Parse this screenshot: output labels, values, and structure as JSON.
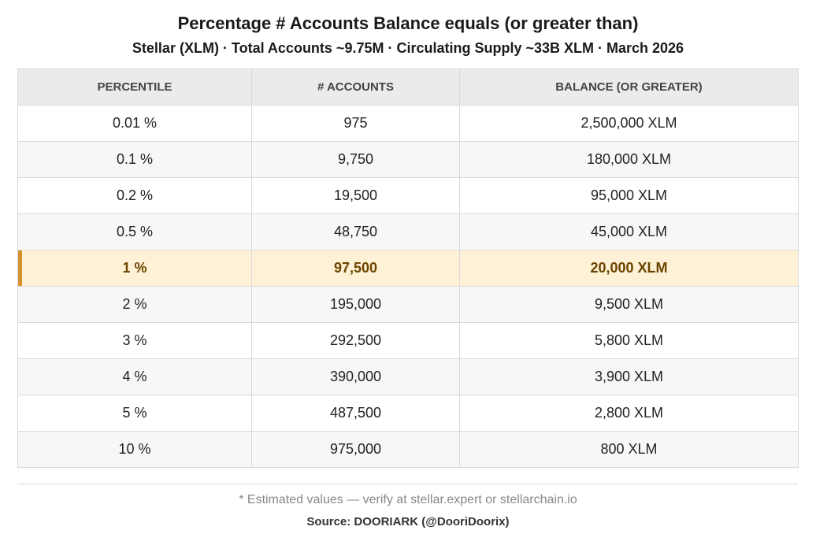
{
  "chart_data": {
    "type": "table",
    "title": "Percentage # Accounts Balance equals (or greater than)",
    "subtitle": "Stellar (XLM) · Total Accounts ~9.75M · Circulating Supply ~33B XLM · March 2026",
    "columns": [
      "PERCENTILE",
      "# ACCOUNTS",
      "BALANCE (OR GREATER)"
    ],
    "rows": [
      {
        "percentile": "0.01 %",
        "accounts": "975",
        "balance": "2,500,000 XLM",
        "highlighted": false
      },
      {
        "percentile": "0.1 %",
        "accounts": "9,750",
        "balance": "180,000 XLM",
        "highlighted": false
      },
      {
        "percentile": "0.2 %",
        "accounts": "19,500",
        "balance": "95,000 XLM",
        "highlighted": false
      },
      {
        "percentile": "0.5 %",
        "accounts": "48,750",
        "balance": "45,000 XLM",
        "highlighted": false
      },
      {
        "percentile": "1 %",
        "accounts": "97,500",
        "balance": "20,000 XLM",
        "highlighted": true
      },
      {
        "percentile": "2 %",
        "accounts": "195,000",
        "balance": "9,500 XLM",
        "highlighted": false
      },
      {
        "percentile": "3 %",
        "accounts": "292,500",
        "balance": "5,800 XLM",
        "highlighted": false
      },
      {
        "percentile": "4 %",
        "accounts": "390,000",
        "balance": "3,900 XLM",
        "highlighted": false
      },
      {
        "percentile": "5 %",
        "accounts": "487,500",
        "balance": "2,800 XLM",
        "highlighted": false
      },
      {
        "percentile": "10 %",
        "accounts": "975,000",
        "balance": "800 XLM",
        "highlighted": false
      }
    ],
    "note": "* Estimated values — verify at stellar.expert or stellarchain.io",
    "source": "Source: DOORIARK (@DooriDoorix)",
    "colors": {
      "header_bg": "#ebebeb",
      "highlight_bg": "#fff1d6",
      "highlight_text": "#6b4400",
      "highlight_accent": "#d4922e"
    }
  }
}
